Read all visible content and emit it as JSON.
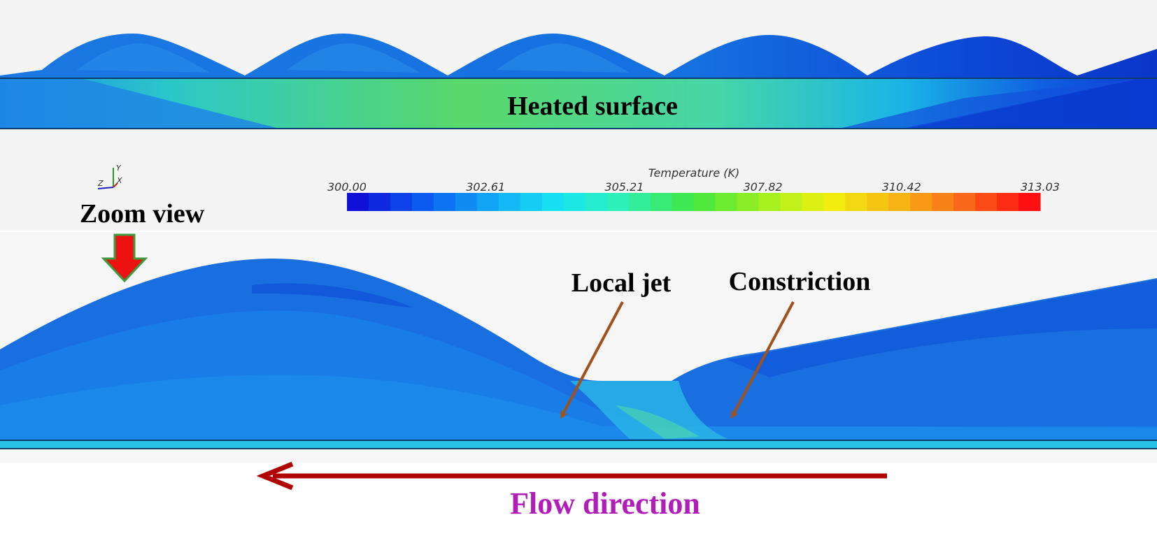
{
  "colors": {
    "page_background": "#ffffff",
    "panel_background": "#f4f4f4",
    "fluid_blue": "#1a6fe0",
    "fluid_deep_blue": "#0a3fd0",
    "heated_green": "#49d67d",
    "annotation_arrow": "#a0521c",
    "flow_arrow": "#b00000",
    "flow_text": "#b01db8",
    "zoom_arrow_fill": "#ee1111",
    "zoom_arrow_stroke": "#3f9a3f",
    "text_dark": "#000000"
  },
  "top_panel": {
    "heated_surface_label": "Heated surface"
  },
  "axes_triad": {
    "y_label": "Y",
    "x_label": "X",
    "z_label": "Z"
  },
  "colorbar": {
    "title": "Temperature (K)",
    "min": 300.0,
    "max": 313.03,
    "ticks": [
      "300.00",
      "302.61",
      "305.21",
      "307.82",
      "310.42",
      "313.03"
    ],
    "stops": [
      "#1010d8",
      "#0a5ef0",
      "#12a8f4",
      "#18e6f4",
      "#2ff0b0",
      "#40e640",
      "#9cf021",
      "#f0f010",
      "#f8b814",
      "#f86a1a",
      "#ff1010"
    ]
  },
  "zoom_panel": {
    "zoom_label": "Zoom view",
    "local_jet_label": "Local jet",
    "constriction_label": "Constriction"
  },
  "flow": {
    "label": "Flow direction"
  }
}
